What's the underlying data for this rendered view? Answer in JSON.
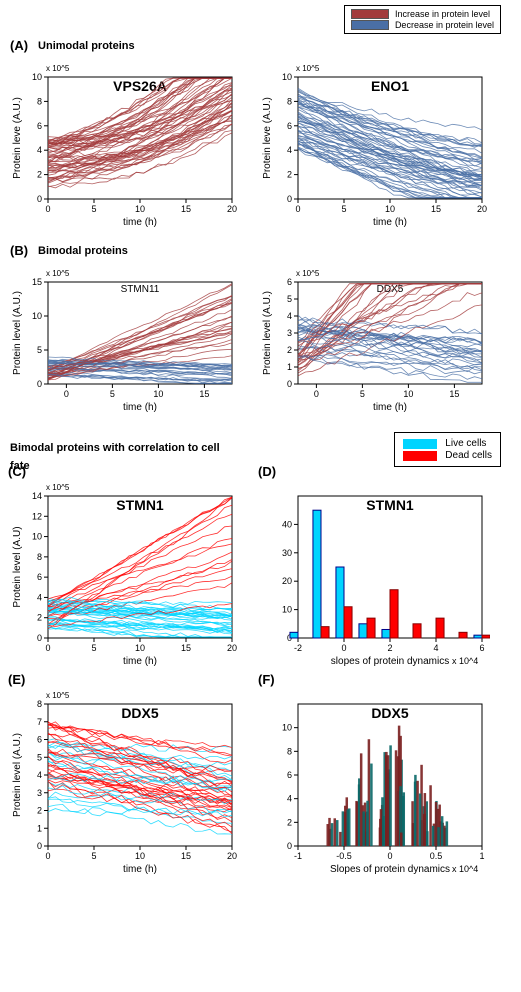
{
  "colors": {
    "increase": "#a23b3c",
    "decrease": "#4a6fa5",
    "live": "#00d4ff",
    "dead": "#ff0000",
    "axis": "#000000",
    "bg": "#ffffff",
    "dark_red": "#7a1f1f",
    "dark_teal": "#0a6868"
  },
  "legend_top": {
    "inc": "Increase  in protein level",
    "dec": "Decrease  in protein level"
  },
  "legend_mid": {
    "live": "Live cells",
    "dead": "Dead cells"
  },
  "sections": {
    "A": "Unimodal  proteins",
    "B": "Bimodal  proteins",
    "Ctitle": "Bimodal proteins with correlation to cell fate"
  },
  "panelA": {
    "left": {
      "title": "VPS26A",
      "xlabel": "time (h)",
      "ylabel": "Protein leve (A.U.)",
      "xlim": [
        0,
        20
      ],
      "ylim": [
        0,
        10
      ],
      "yexp": "x 10^5",
      "xticks": [
        0,
        5,
        10,
        15,
        20
      ],
      "yticks": [
        0,
        2,
        4,
        6,
        8,
        10
      ],
      "color": "#a23b3c",
      "n": 60
    },
    "right": {
      "title": "ENO1",
      "xlabel": "time (h)",
      "ylabel": "Protein leve (A.U.)",
      "xlim": [
        0,
        20
      ],
      "ylim": [
        0,
        10
      ],
      "yexp": "x 10^5",
      "xticks": [
        0,
        5,
        10,
        15,
        20
      ],
      "yticks": [
        0,
        2,
        4,
        6,
        8,
        10
      ],
      "color": "#4a6fa5",
      "n": 60
    }
  },
  "panelB": {
    "left": {
      "title": "STMN11",
      "xlabel": "time (h)",
      "ylabel": "Protein level (A.U.)",
      "xlim": [
        -2,
        18
      ],
      "ylim": [
        0,
        15
      ],
      "yexp": "x 10^5",
      "xticks": [
        0,
        5,
        10,
        15
      ],
      "yticks": [
        0,
        5,
        10,
        15
      ],
      "n": 50
    },
    "right": {
      "title": "DDX5",
      "xlabel": "time (h)",
      "ylabel": "Protein level (A.U.)",
      "xlim": [
        -2,
        18
      ],
      "ylim": [
        0,
        6
      ],
      "yexp": "x 10^5",
      "xticks": [
        0,
        5,
        10,
        15
      ],
      "yticks": [
        0,
        1,
        2,
        3,
        4,
        5,
        6
      ],
      "n": 50
    }
  },
  "panelC": {
    "title": "STMN1",
    "xlabel": "time (h)",
    "ylabel": "Protein level (A.U)",
    "xlim": [
      0,
      20
    ],
    "ylim": [
      0,
      14
    ],
    "yexp": "x 10^5",
    "xticks": [
      0,
      5,
      10,
      15,
      20
    ],
    "yticks": [
      0,
      2,
      4,
      6,
      8,
      10,
      12,
      14
    ],
    "n": 50
  },
  "panelD": {
    "title": "STMN1",
    "xlabel": "slopes of protein dynamics",
    "yexp": "x 10^4",
    "xlim": [
      -2,
      6
    ],
    "ylim": [
      0,
      50
    ],
    "xticks": [
      -2,
      0,
      2,
      4,
      6
    ],
    "bars_live": {
      "-2": 2,
      "-1": 45,
      "0": 25,
      "1": 5,
      "2": 3,
      "3": 0,
      "4": 0,
      "5": 0,
      "6": 1
    },
    "bars_dead": {
      "-2": 0,
      "-1": 4,
      "0": 11,
      "1": 7,
      "2": 17,
      "3": 5,
      "4": 7,
      "5": 2,
      "6": 1
    }
  },
  "panelE": {
    "title": "DDX5",
    "xlabel": "time (h)",
    "ylabel": "Protein level (A.U.)",
    "xlim": [
      0,
      20
    ],
    "ylim": [
      0,
      8
    ],
    "yexp": "x 10^5",
    "xticks": [
      0,
      5,
      10,
      15,
      20
    ],
    "yticks": [
      0,
      1,
      2,
      3,
      4,
      5,
      6,
      7,
      8
    ],
    "n": 50
  },
  "panelF": {
    "title": "DDX5",
    "xlabel": "Slopes of protein dynamics",
    "yexp": "x 10^4",
    "xlim": [
      -1,
      1
    ],
    "ylim": [
      0,
      12
    ],
    "xticks": [
      -1,
      -0.5,
      0,
      0.5,
      1
    ],
    "n_bars": 40
  },
  "letters": {
    "A": "(A)",
    "B": "(B)",
    "C": "(C)",
    "D": "(D)",
    "E": "(E)",
    "F": "(F)"
  }
}
